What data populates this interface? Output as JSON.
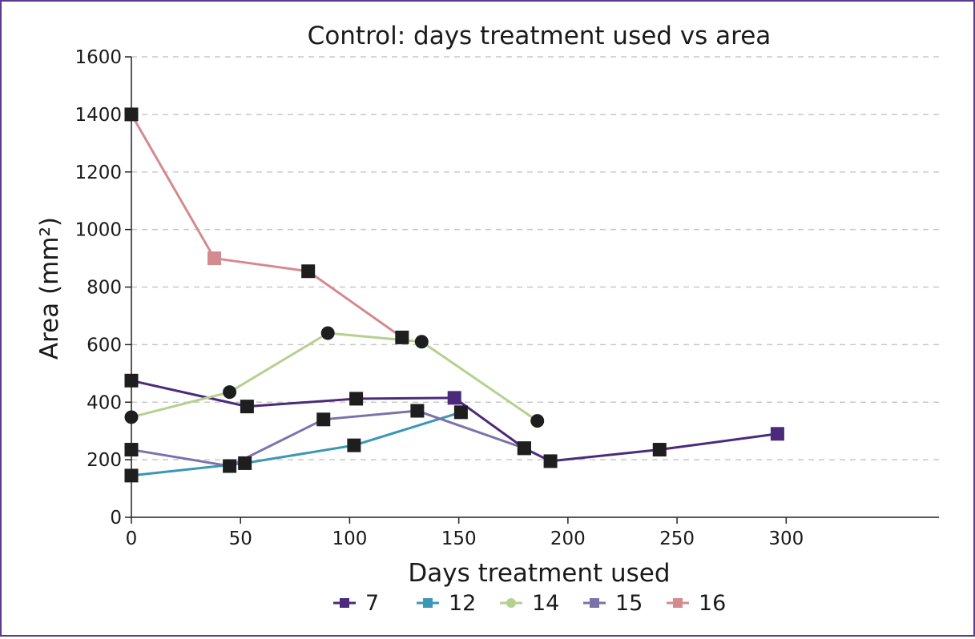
{
  "chart_data": {
    "type": "line",
    "title": "Control: days treatment used vs area",
    "xlabel": "Days treatment used",
    "ylabel": "Area (mm²)",
    "xlim": [
      0,
      370
    ],
    "ylim": [
      0,
      1600
    ],
    "xticks": [
      0,
      50,
      100,
      150,
      200,
      250,
      300
    ],
    "yticks": [
      0,
      200,
      400,
      600,
      800,
      1000,
      1200,
      1400,
      1600
    ],
    "grid": "horizontal dashed",
    "legend_position": "bottom",
    "series": [
      {
        "name": "7",
        "color": "#4b2a7b",
        "marker": "square",
        "points": [
          [
            0,
            475
          ],
          [
            53,
            385
          ],
          [
            103,
            412
          ],
          [
            148,
            415
          ],
          [
            180,
            240
          ],
          [
            192,
            195
          ],
          [
            242,
            235
          ],
          [
            296,
            290
          ]
        ],
        "black_markers": [
          true,
          true,
          true,
          false,
          true,
          true,
          true,
          false
        ]
      },
      {
        "name": "12",
        "color": "#3a97b5",
        "marker": "square",
        "points": [
          [
            0,
            145
          ],
          [
            52,
            188
          ],
          [
            102,
            250
          ],
          [
            151,
            365
          ]
        ],
        "black_markers": [
          true,
          true,
          true,
          true
        ]
      },
      {
        "name": "14",
        "color": "#b5d18f",
        "marker": "circle",
        "points": [
          [
            0,
            348
          ],
          [
            45,
            435
          ],
          [
            90,
            640
          ],
          [
            133,
            610
          ],
          [
            186,
            335
          ]
        ],
        "black_markers": [
          true,
          true,
          true,
          true,
          true
        ]
      },
      {
        "name": "15",
        "color": "#7b72aa",
        "marker": "square",
        "points": [
          [
            0,
            235
          ],
          [
            45,
            178
          ],
          [
            88,
            340
          ],
          [
            131,
            370
          ],
          [
            180,
            240
          ]
        ],
        "black_markers": [
          true,
          true,
          true,
          true,
          true
        ]
      },
      {
        "name": "16",
        "color": "#d48a8e",
        "marker": "square",
        "points": [
          [
            0,
            1400
          ],
          [
            38,
            900
          ],
          [
            81,
            855
          ],
          [
            124,
            625
          ]
        ],
        "black_markers": [
          true,
          false,
          true,
          true
        ]
      }
    ]
  }
}
